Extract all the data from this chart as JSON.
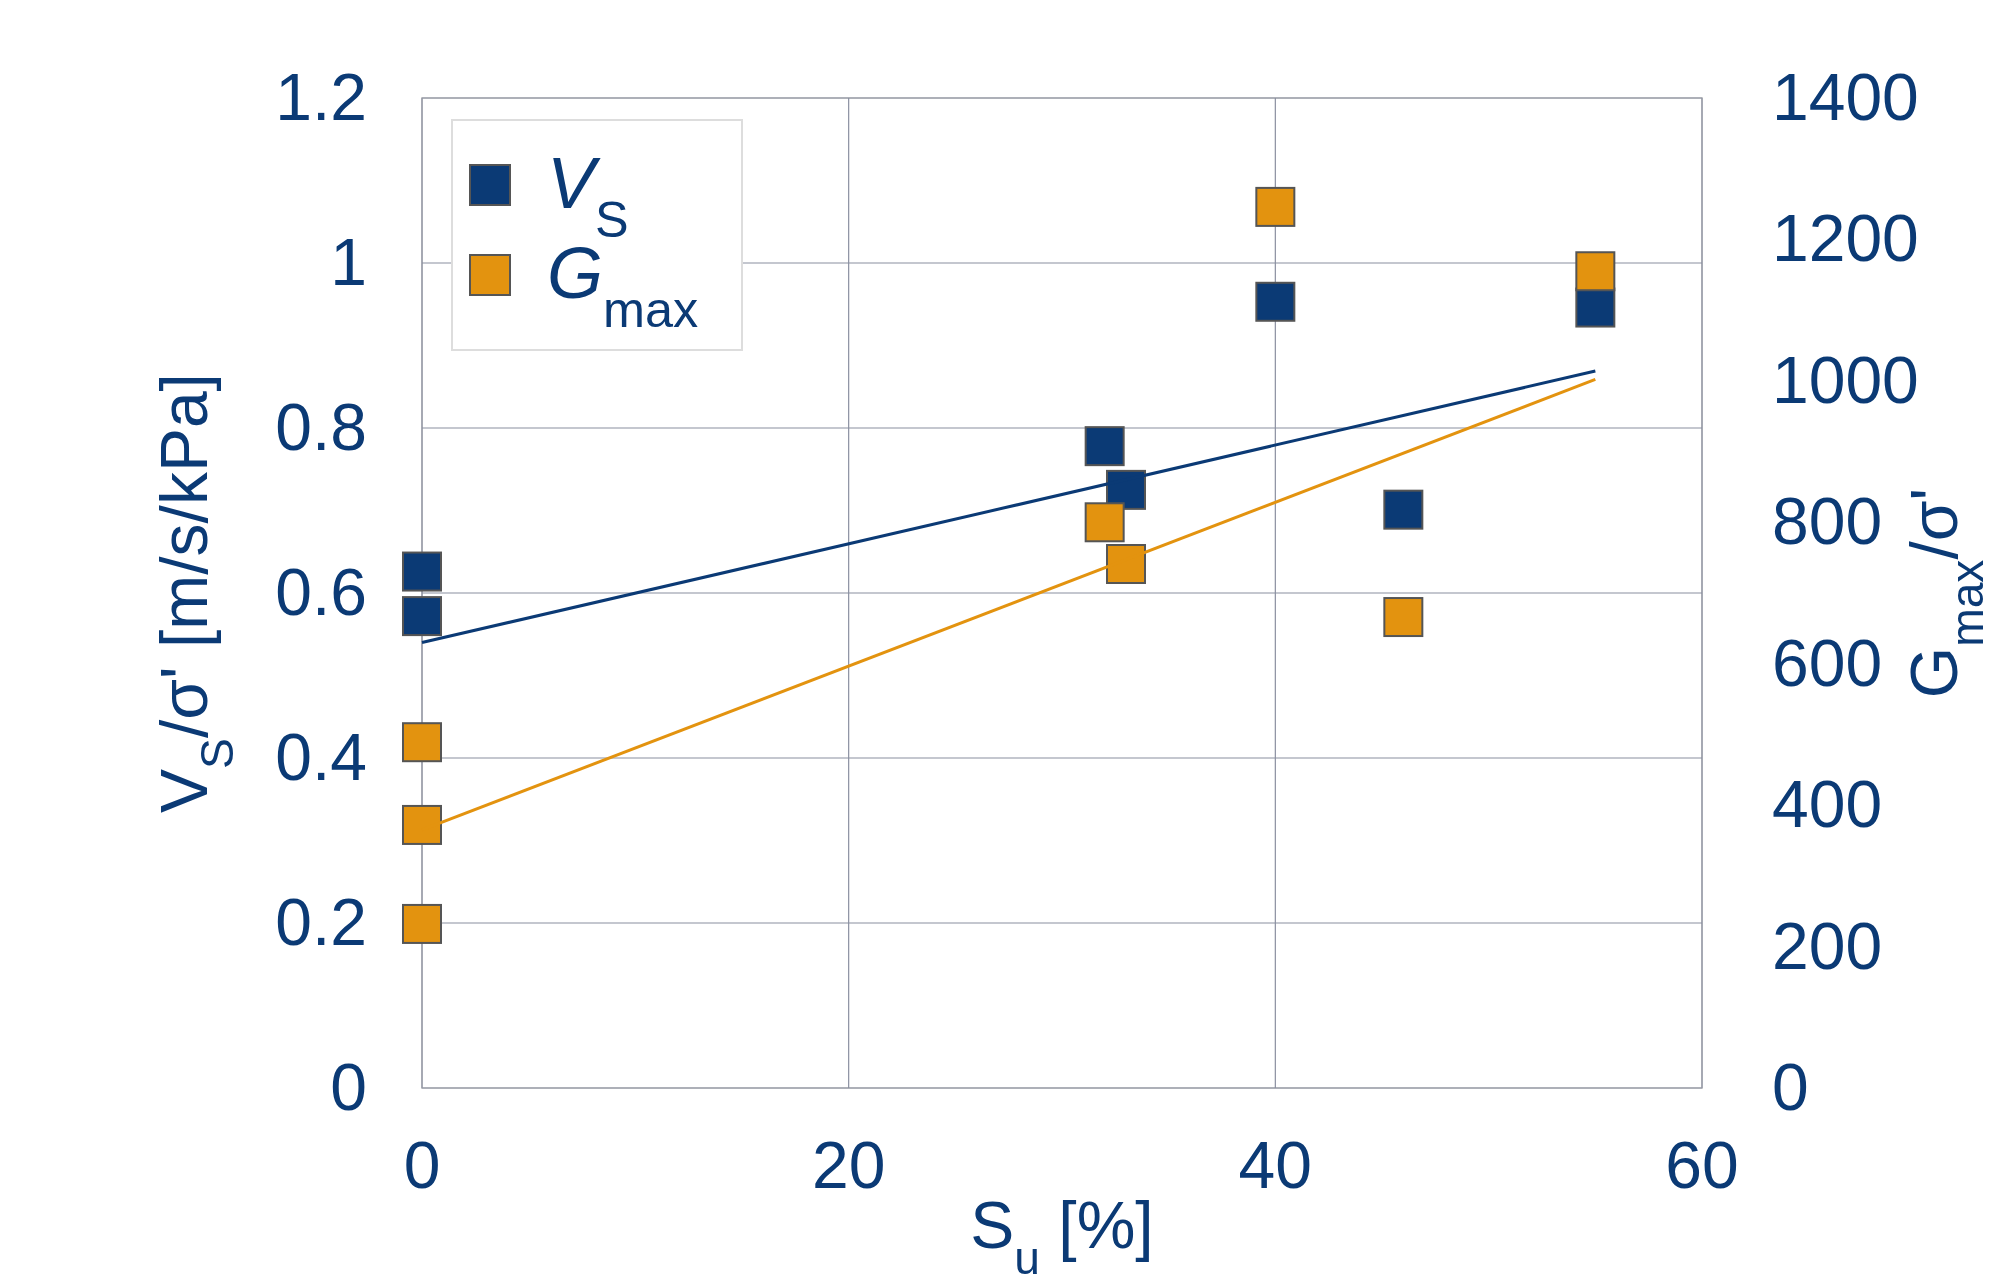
{
  "chart_data": {
    "type": "scatter",
    "xlabel": "S$_{u}$ [%]",
    "ylabel": "V$_{S}$/σ' [m/s/kPa]",
    "y2label": "G$_{max}$/σ'",
    "xlim": [
      0,
      60
    ],
    "xticks": [
      0,
      20,
      40,
      60
    ],
    "ylim": [
      0,
      1.2
    ],
    "yticks": [
      0,
      0.2,
      0.4,
      0.6,
      {
        "value": 0.8,
        "label": "0.8"
      },
      1,
      1.2
    ],
    "y2lim": [
      0,
      1400
    ],
    "y2ticks": [
      0,
      200,
      400,
      600,
      800,
      1000,
      1200,
      1400
    ],
    "grid": true,
    "legend": "top left",
    "marker": "square",
    "line_style": "solid",
    "series": [
      {
        "name": "V$_{S}$",
        "color": "#0b3a75",
        "x": [
          0,
          0,
          32,
          33,
          40,
          46,
          55
        ],
        "values": [
          0.626,
          0.572,
          0.778,
          0.725,
          0.953,
          0.701,
          0.946
        ]
      },
      {
        "name": "G$_{max}$",
        "color": "#e3930f",
        "axis": "y2",
        "x": [
          0,
          0,
          0,
          32,
          33,
          40,
          46,
          55
        ],
        "values": [
          489,
          372,
          232,
          800,
          741,
          1246,
          666,
          1155
        ]
      },
      {
        "type": "line",
        "marker": "none",
        "color": "#0b3a75",
        "x": [
          0,
          55
        ],
        "values": [
          0.54,
          0.869
        ]
      },
      {
        "type": "line",
        "marker": "none",
        "color": "#e3930f",
        "axis": "y2",
        "x": [
          0,
          55
        ],
        "values": [
          365,
          1002
        ]
      }
    ]
  }
}
